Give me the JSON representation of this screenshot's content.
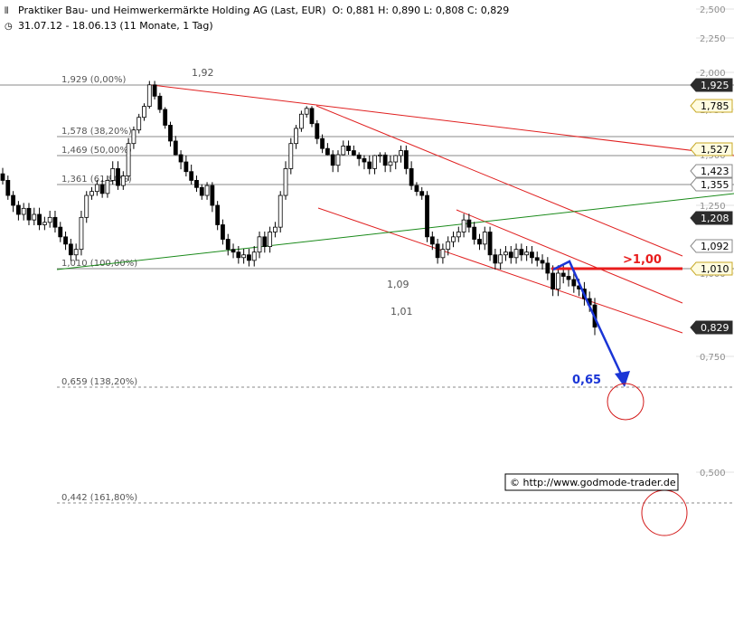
{
  "header": {
    "title": "Praktiker Bau- und Heimwerkermärkte Holding AG (Last, EUR)",
    "ohlc": "O: 0,881  H: 0,890  L: 0,808  C: 0,829",
    "period": "31.07.12 - 18.06.13 (11 Monate, 1 Tag)"
  },
  "watermark": "© http://www.godmode-trader.de",
  "chart_data": {
    "type": "candlestick",
    "y_axis_ticks": [
      "2,500",
      "2,250",
      "2,000",
      "1,750",
      "1,500",
      "1,250",
      "1,000",
      "0,750",
      "0,500"
    ],
    "ylim": [
      0.38,
      2.5
    ],
    "fibonacci_levels": [
      {
        "label": "1,929 (0,00%)",
        "value": 1.929
      },
      {
        "label": "1,578 (38,20%)",
        "value": 1.578
      },
      {
        "label": "1,469 (50,00%)",
        "value": 1.469
      },
      {
        "label": "1,361 (61,80%)",
        "value": 1.361
      },
      {
        "label": "1,010 (100,00%)",
        "value": 1.01
      },
      {
        "label": "0,659 (138,20%)",
        "value": 0.659
      },
      {
        "label": "0,442 (161,80%)",
        "value": 0.442
      }
    ],
    "price_boxes": [
      {
        "label": "1,925",
        "value": 1.925,
        "style": "dark"
      },
      {
        "label": "1,785",
        "value": 1.785,
        "style": "yellow"
      },
      {
        "label": "1,527",
        "value": 1.527,
        "style": "yellow"
      },
      {
        "label": "1,423",
        "value": 1.423,
        "style": "light"
      },
      {
        "label": "1,355",
        "value": 1.355,
        "style": "light"
      },
      {
        "label": "1,208",
        "value": 1.208,
        "style": "dark"
      },
      {
        "label": "1,092",
        "value": 1.092,
        "style": "light"
      },
      {
        "label": "1,010",
        "value": 1.01,
        "style": "yellow"
      },
      {
        "label": "0,829",
        "value": 0.829,
        "style": "dark"
      }
    ],
    "annotations": [
      {
        "text": "1,92",
        "color": "#555555"
      },
      {
        "text": "1,09",
        "color": "#555555"
      },
      {
        "text": "1,01",
        "color": "#555555"
      },
      {
        "text": ">1,00",
        "color": "#e81c1c"
      },
      {
        "text": "0,65",
        "color": "#1a35d6"
      }
    ],
    "closes": [
      1.38,
      1.3,
      1.25,
      1.22,
      1.24,
      1.2,
      1.22,
      1.18,
      1.19,
      1.21,
      1.17,
      1.13,
      1.1,
      1.06,
      1.08,
      1.21,
      1.3,
      1.32,
      1.36,
      1.31,
      1.38,
      1.43,
      1.35,
      1.4,
      1.55,
      1.62,
      1.7,
      1.78,
      1.93,
      1.85,
      1.75,
      1.65,
      1.56,
      1.5,
      1.45,
      1.42,
      1.38,
      1.34,
      1.3,
      1.35,
      1.25,
      1.18,
      1.12,
      1.08,
      1.07,
      1.05,
      1.06,
      1.04,
      1.07,
      1.13,
      1.09,
      1.15,
      1.17,
      1.3,
      1.43,
      1.55,
      1.63,
      1.72,
      1.76,
      1.66,
      1.57,
      1.53,
      1.5,
      1.44,
      1.5,
      1.54,
      1.52,
      1.49,
      1.46,
      1.45,
      1.43,
      1.47,
      1.49,
      1.44,
      1.45,
      1.47,
      1.52,
      1.43,
      1.35,
      1.32,
      1.3,
      1.13,
      1.1,
      1.05,
      1.08,
      1.11,
      1.13,
      1.15,
      1.2,
      1.17,
      1.12,
      1.1,
      1.15,
      1.06,
      1.03,
      1.06,
      1.07,
      1.05,
      1.08,
      1.06,
      1.07,
      1.05,
      1.04,
      1.03,
      1.0,
      0.95,
      1.0,
      0.99,
      0.98,
      0.96,
      0.95,
      0.92,
      0.9,
      0.83
    ]
  }
}
